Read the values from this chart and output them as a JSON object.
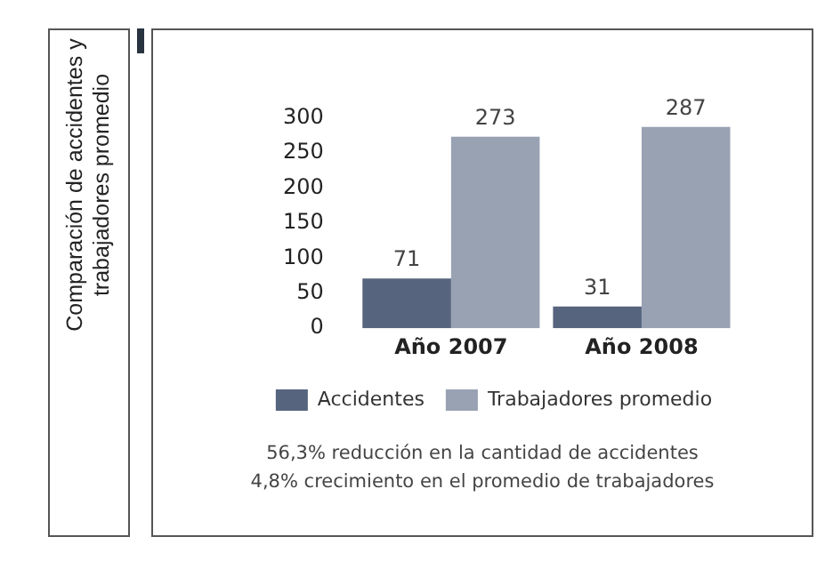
{
  "chart_data": {
    "type": "bar",
    "title": "Comparación de accidentes y trabajadores promedio",
    "categories": [
      "Año 2007",
      "Año 2008"
    ],
    "series": [
      {
        "name": "Accidentes",
        "color": "#56647e",
        "values": [
          71,
          31
        ]
      },
      {
        "name": "Trabajadores promedio",
        "color": "#98a2b3",
        "values": [
          273,
          287
        ]
      }
    ],
    "ylim": [
      0,
      300
    ],
    "yticks": [
      0,
      50,
      100,
      150,
      200,
      250,
      300
    ],
    "grid": false,
    "legend": "bottom",
    "data_labels": true,
    "annotations": [
      "56,3% reducción en la cantidad de accidentes",
      "4,8% crecimiento en el promedio de trabajadores"
    ]
  }
}
